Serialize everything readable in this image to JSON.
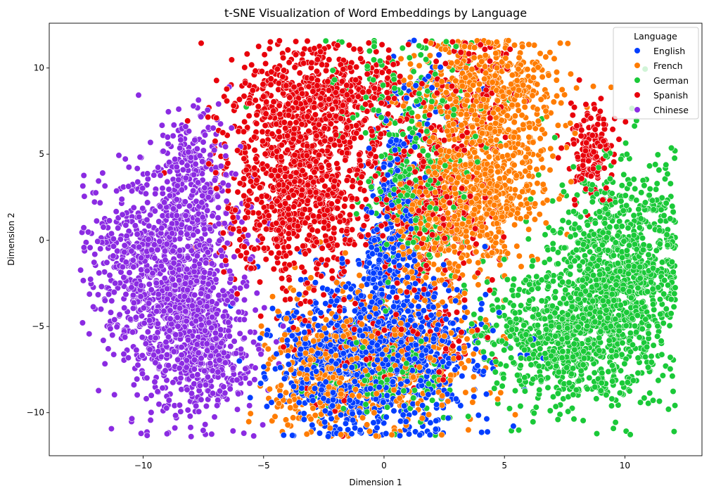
{
  "chart_data": {
    "type": "scatter",
    "title": "t-SNE Visualization of Word Embeddings by Language",
    "xlabel": "Dimension 1",
    "ylabel": "Dimension 2",
    "xlim": [
      -13.9,
      13.2
    ],
    "ylim": [
      -12.5,
      12.6
    ],
    "xticks": [
      -10,
      -5,
      0,
      5,
      10
    ],
    "yticks": [
      -10,
      -5,
      0,
      5,
      10
    ],
    "xtick_labels": [
      "−10",
      "−5",
      "0",
      "5",
      "10"
    ],
    "ytick_labels": [
      "−10",
      "−5",
      "0",
      "5",
      "10"
    ],
    "grid": false,
    "legend": {
      "title": "Language",
      "placement": "top-right",
      "entries": [
        "English",
        "French",
        "German",
        "Spanish",
        "Chinese"
      ]
    },
    "series": [
      {
        "name": "English",
        "color": "#023eff",
        "clusters": [
          {
            "cx": 0.0,
            "cy": -6.5,
            "sx": 2.0,
            "sy": 2.3,
            "n": 900
          },
          {
            "cx": 0.0,
            "cy": -1.5,
            "sx": 0.5,
            "sy": 2.0,
            "n": 160
          },
          {
            "cx": 0.5,
            "cy": 3.5,
            "sx": 0.6,
            "sy": 2.2,
            "n": 120
          },
          {
            "cx": -2.5,
            "cy": -7.0,
            "sx": 1.2,
            "sy": 2.0,
            "n": 220
          },
          {
            "cx": 1.8,
            "cy": 9.0,
            "sx": 0.8,
            "sy": 1.2,
            "n": 40
          }
        ]
      },
      {
        "name": "French",
        "color": "#ff7c00",
        "clusters": [
          {
            "cx": 4.0,
            "cy": 3.0,
            "sx": 1.3,
            "sy": 2.0,
            "n": 650
          },
          {
            "cx": 4.2,
            "cy": 8.5,
            "sx": 1.5,
            "sy": 1.8,
            "n": 520
          },
          {
            "cx": 1.8,
            "cy": 0.0,
            "sx": 1.0,
            "sy": 2.2,
            "n": 220
          },
          {
            "cx": -2.5,
            "cy": -7.5,
            "sx": 1.3,
            "sy": 2.0,
            "n": 330
          },
          {
            "cx": 0.8,
            "cy": -7.0,
            "sx": 1.7,
            "sy": 2.2,
            "n": 320
          }
        ]
      },
      {
        "name": "German",
        "color": "#1ac938",
        "clusters": [
          {
            "cx": 9.8,
            "cy": -2.0,
            "sx": 1.3,
            "sy": 3.3,
            "n": 1050
          },
          {
            "cx": 7.0,
            "cy": -5.5,
            "sx": 1.5,
            "sy": 2.0,
            "n": 650
          },
          {
            "cx": 1.2,
            "cy": 3.0,
            "sx": 1.0,
            "sy": 2.5,
            "n": 260
          },
          {
            "cx": 0.5,
            "cy": -8.0,
            "sx": 1.3,
            "sy": 1.2,
            "n": 160
          },
          {
            "cx": 1.0,
            "cy": 8.5,
            "sx": 1.5,
            "sy": 2.0,
            "n": 120
          }
        ]
      },
      {
        "name": "Spanish",
        "color": "#e8000b",
        "clusters": [
          {
            "cx": -3.5,
            "cy": 3.0,
            "sx": 1.6,
            "sy": 2.7,
            "n": 950
          },
          {
            "cx": -2.5,
            "cy": 8.5,
            "sx": 1.8,
            "sy": 1.5,
            "n": 520
          },
          {
            "cx": 2.0,
            "cy": 1.5,
            "sx": 1.3,
            "sy": 3.0,
            "n": 300
          },
          {
            "cx": 8.6,
            "cy": 5.2,
            "sx": 0.45,
            "sy": 1.3,
            "n": 160
          },
          {
            "cx": 0.0,
            "cy": -6.0,
            "sx": 2.0,
            "sy": 2.0,
            "n": 160
          },
          {
            "cx": 3.5,
            "cy": 9.0,
            "sx": 1.2,
            "sy": 1.6,
            "n": 90
          }
        ]
      },
      {
        "name": "Chinese",
        "color": "#8b2be2",
        "clusters": [
          {
            "cx": -8.5,
            "cy": -3.0,
            "sx": 1.4,
            "sy": 3.5,
            "n": 1050
          },
          {
            "cx": -8.0,
            "cy": 4.0,
            "sx": 0.8,
            "sy": 2.0,
            "n": 220
          },
          {
            "cx": -10.5,
            "cy": -1.0,
            "sx": 1.0,
            "sy": 2.2,
            "n": 250
          },
          {
            "cx": -7.0,
            "cy": -7.0,
            "sx": 0.9,
            "sy": 1.5,
            "n": 200
          }
        ]
      }
    ]
  }
}
